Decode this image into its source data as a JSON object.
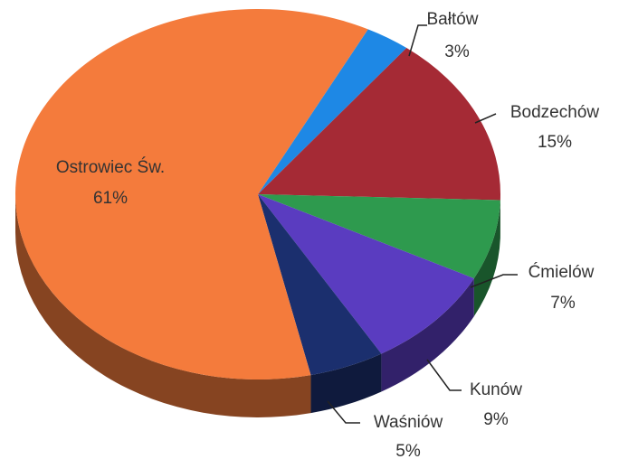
{
  "chart_data": {
    "type": "pie",
    "categories": [
      "Bałtów",
      "Bodzechów",
      "Ćmielów",
      "Kunów",
      "Waśniów",
      "Ostrowiec Św."
    ],
    "values": [
      3,
      15,
      7,
      9,
      5,
      61
    ],
    "value_labels": [
      "3%",
      "15%",
      "7%",
      "9%",
      "5%",
      "61%"
    ],
    "colors": [
      "#1e88e5",
      "#a52a35",
      "#2e9a4e",
      "#5a3cc0",
      "#1b2f6e",
      "#f47b3c"
    ]
  }
}
